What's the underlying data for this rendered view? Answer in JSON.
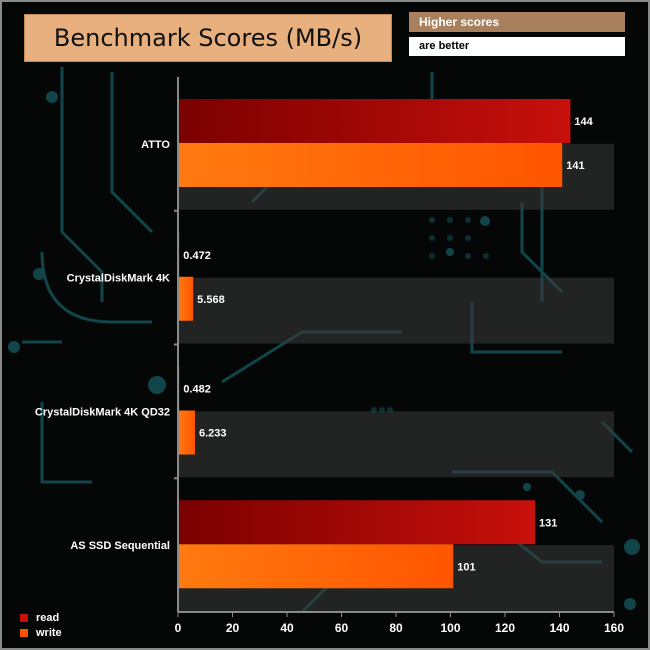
{
  "title": "Benchmark Scores (MB/s)",
  "note_line1": "Higher scores",
  "note_line2": "are better",
  "colors": {
    "read": "#c8100c",
    "write": "#ff5500",
    "title_bg": "#e8b07e",
    "note_bg": "#a9805e",
    "circuit": "#12454a"
  },
  "chart_data": {
    "type": "bar",
    "orientation": "horizontal",
    "categories": [
      "ATTO",
      "CrystalDiskMark 4K",
      "CrystalDiskMark 4K QD32",
      "AS SSD Sequential"
    ],
    "series": [
      {
        "name": "read",
        "values": [
          144,
          0.472,
          0.482,
          131
        ],
        "labels": [
          "144",
          "0.472",
          "0.482",
          "131"
        ]
      },
      {
        "name": "write",
        "values": [
          141,
          5.568,
          6.233,
          101
        ],
        "labels": [
          "141",
          "5.568",
          "6.233",
          "101"
        ]
      }
    ],
    "xlim": [
      0,
      160
    ],
    "xticks": [
      0,
      20,
      40,
      60,
      80,
      100,
      120,
      140,
      160
    ],
    "legend_position": "bottom-left"
  }
}
